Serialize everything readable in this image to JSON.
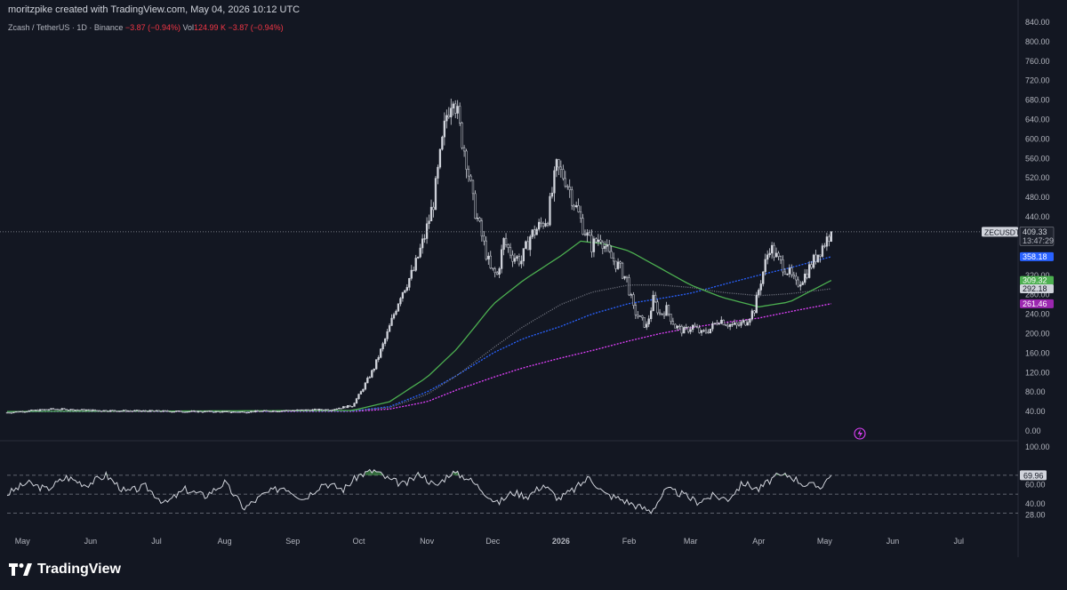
{
  "header": {
    "created_text": "moritzpike created with TradingView.com, May 04, 2026 10:12 UTC"
  },
  "symbol_bar": {
    "name": "Zcash / TetherUS · 1D · Binance",
    "change": "−3.87 (−0.94%)",
    "vol_label": "Vol",
    "vol_value": "124.99 K",
    "vol_change": "−3.87 (−0.94%)"
  },
  "footer": {
    "brand": "TradingView"
  },
  "colors": {
    "background": "#131722",
    "candle": "#d1d4dc",
    "ma_green": "#4caf50",
    "ma_blue": "#2962ff",
    "ma_magenta": "#e040fb",
    "ma_gray": "#787b86",
    "rsi_line": "#d1d4dc",
    "rsi_fill": "#4caf50"
  },
  "chart_data": [
    {
      "type": "candlestick",
      "title": "Zcash / TetherUS · 1D · Binance",
      "ylim": [
        0,
        840
      ],
      "y_ticks": [
        0,
        40,
        80,
        120,
        160,
        200,
        240,
        280,
        320,
        360,
        400,
        440,
        480,
        520,
        560,
        600,
        640,
        680,
        720,
        760,
        800,
        840
      ],
      "y_tick_labels": [
        "0.00",
        "40.00",
        "80.00",
        "120.00",
        "160.00",
        "200.00",
        "240.00",
        "280.00",
        "320.00",
        "360.00",
        "400.00",
        "440.00",
        "480.00",
        "520.00",
        "560.00",
        "600.00",
        "640.00",
        "680.00",
        "720.00",
        "760.00",
        "800.00",
        "840.00"
      ],
      "x_labels": [
        "May",
        "Jun",
        "Jul",
        "Aug",
        "Sep",
        "Oct",
        "Nov",
        "Dec",
        "2026",
        "Feb",
        "Mar",
        "Apr",
        "May",
        "Jun",
        "Jul"
      ],
      "x_label_dates": [
        "2025-05-01",
        "2025-06-01",
        "2025-07-01",
        "2025-08-01",
        "2025-09-01",
        "2025-10-01",
        "2025-11-01",
        "2025-12-01",
        "2026-01-01",
        "2026-02-01",
        "2026-03-01",
        "2026-04-01",
        "2026-05-01",
        "2026-06-01",
        "2026-07-01"
      ],
      "x_range": [
        "2025-04-24",
        "2026-07-26"
      ],
      "grid": false,
      "close_points": {
        "x": [
          "2025-04-24",
          "2025-05-15",
          "2025-06-05",
          "2025-06-26",
          "2025-07-17",
          "2025-08-07",
          "2025-08-28",
          "2025-09-18",
          "2025-09-28",
          "2025-10-02",
          "2025-10-08",
          "2025-10-14",
          "2025-10-20",
          "2025-10-26",
          "2025-10-31",
          "2025-11-04",
          "2025-11-07",
          "2025-11-10",
          "2025-11-13",
          "2025-11-16",
          "2025-11-19",
          "2025-11-22",
          "2025-11-26",
          "2025-11-30",
          "2025-12-03",
          "2025-12-06",
          "2025-12-10",
          "2025-12-14",
          "2025-12-18",
          "2025-12-22",
          "2025-12-26",
          "2025-12-30",
          "2026-01-03",
          "2026-01-07",
          "2026-01-11",
          "2026-01-15",
          "2026-01-19",
          "2026-01-23",
          "2026-01-27",
          "2026-01-31",
          "2026-02-03",
          "2026-02-06",
          "2026-02-09",
          "2026-02-12",
          "2026-02-15",
          "2026-02-18",
          "2026-02-22",
          "2026-02-26",
          "2026-03-02",
          "2026-03-06",
          "2026-03-10",
          "2026-03-14",
          "2026-03-18",
          "2026-03-22",
          "2026-03-26",
          "2026-03-30",
          "2026-04-02",
          "2026-04-06",
          "2026-04-10",
          "2026-04-14",
          "2026-04-18",
          "2026-04-22",
          "2026-04-26",
          "2026-04-30",
          "2026-05-04"
        ],
        "y": [
          38,
          45,
          42,
          41,
          40,
          39,
          42,
          44,
          52,
          80,
          130,
          200,
          280,
          330,
          400,
          470,
          560,
          650,
          700,
          620,
          560,
          470,
          400,
          330,
          320,
          390,
          360,
          350,
          400,
          420,
          440,
          540,
          520,
          470,
          420,
          380,
          400,
          360,
          340,
          310,
          250,
          230,
          215,
          270,
          240,
          250,
          215,
          205,
          215,
          200,
          210,
          230,
          220,
          215,
          225,
          250,
          310,
          380,
          350,
          330,
          300,
          320,
          350,
          380,
          409.33
        ]
      },
      "series": [
        {
          "name": "MA green",
          "x": [
            "2025-04-24",
            "2025-09-28",
            "2025-10-15",
            "2025-11-01",
            "2025-11-15",
            "2025-12-01",
            "2025-12-15",
            "2026-01-01",
            "2026-01-10",
            "2026-01-20",
            "2026-02-01",
            "2026-02-15",
            "2026-03-01",
            "2026-03-15",
            "2026-04-01",
            "2026-04-15",
            "2026-05-04"
          ],
          "y": [
            40,
            42,
            60,
            110,
            170,
            260,
            310,
            360,
            390,
            385,
            370,
            335,
            300,
            275,
            255,
            265,
            309.32
          ]
        },
        {
          "name": "MA blue",
          "x": [
            "2025-04-24",
            "2025-09-28",
            "2025-10-15",
            "2025-11-01",
            "2025-11-15",
            "2025-12-01",
            "2025-12-15",
            "2026-01-01",
            "2026-01-15",
            "2026-02-01",
            "2026-02-15",
            "2026-03-01",
            "2026-03-15",
            "2026-04-01",
            "2026-04-15",
            "2026-05-04"
          ],
          "y": [
            40,
            41,
            50,
            80,
            115,
            160,
            190,
            215,
            240,
            262,
            272,
            283,
            300,
            320,
            335,
            358.18
          ]
        },
        {
          "name": "MA gray",
          "x": [
            "2025-04-24",
            "2025-09-28",
            "2025-10-15",
            "2025-11-01",
            "2025-11-15",
            "2025-12-01",
            "2025-12-15",
            "2026-01-01",
            "2026-01-15",
            "2026-02-01",
            "2026-02-15",
            "2026-03-01",
            "2026-03-15",
            "2026-04-01",
            "2026-04-15",
            "2026-05-04"
          ],
          "y": [
            40,
            41,
            48,
            75,
            115,
            170,
            215,
            260,
            285,
            300,
            300,
            295,
            285,
            278,
            282,
            292.18
          ]
        },
        {
          "name": "MA magenta",
          "x": [
            "2025-04-24",
            "2025-09-28",
            "2025-10-15",
            "2025-11-01",
            "2025-11-15",
            "2025-12-01",
            "2025-12-15",
            "2026-01-01",
            "2026-01-15",
            "2026-02-01",
            "2026-02-15",
            "2026-03-01",
            "2026-03-15",
            "2026-04-01",
            "2026-04-15",
            "2026-05-04"
          ],
          "y": [
            40,
            40,
            45,
            60,
            85,
            110,
            130,
            150,
            165,
            185,
            200,
            212,
            222,
            232,
            245,
            261.46
          ]
        }
      ],
      "last_price_label": {
        "symbol": "ZECUSDT",
        "price": "409.33",
        "countdown": "13:47:29"
      },
      "ma_labels": [
        "358.18",
        "309.32",
        "292.18",
        "261.46"
      ]
    },
    {
      "type": "line",
      "title": "",
      "ylim": [
        20,
        100
      ],
      "y_ticks": [
        28,
        40,
        60,
        100
      ],
      "y_tick_labels": [
        "28.00",
        "40.00",
        "60.00",
        "100.00"
      ],
      "levels": [
        70,
        50,
        30
      ],
      "current_value_label": "69.96",
      "x": [
        "2025-04-24",
        "2025-05-03",
        "2025-05-12",
        "2025-05-21",
        "2025-05-30",
        "2025-06-08",
        "2025-06-17",
        "2025-06-26",
        "2025-07-05",
        "2025-07-14",
        "2025-07-23",
        "2025-08-01",
        "2025-08-10",
        "2025-08-19",
        "2025-08-28",
        "2025-09-06",
        "2025-09-15",
        "2025-09-24",
        "2025-10-01",
        "2025-10-08",
        "2025-10-15",
        "2025-10-22",
        "2025-10-29",
        "2025-11-05",
        "2025-11-12",
        "2025-11-19",
        "2025-11-26",
        "2025-12-03",
        "2025-12-10",
        "2025-12-17",
        "2025-12-24",
        "2025-12-31",
        "2026-01-07",
        "2026-01-14",
        "2026-01-21",
        "2026-01-28",
        "2026-02-04",
        "2026-02-11",
        "2026-02-18",
        "2026-02-25",
        "2026-03-04",
        "2026-03-11",
        "2026-03-18",
        "2026-03-25",
        "2026-04-01",
        "2026-04-08",
        "2026-04-15",
        "2026-04-22",
        "2026-04-29",
        "2026-05-04"
      ],
      "values": [
        50,
        62,
        55,
        68,
        60,
        70,
        52,
        58,
        40,
        55,
        48,
        62,
        35,
        50,
        58,
        45,
        62,
        55,
        70,
        75,
        65,
        60,
        72,
        58,
        73,
        68,
        55,
        40,
        52,
        48,
        60,
        45,
        55,
        68,
        50,
        45,
        38,
        32,
        55,
        50,
        42,
        48,
        45,
        62,
        55,
        68,
        70,
        60,
        58,
        69.96
      ]
    }
  ]
}
